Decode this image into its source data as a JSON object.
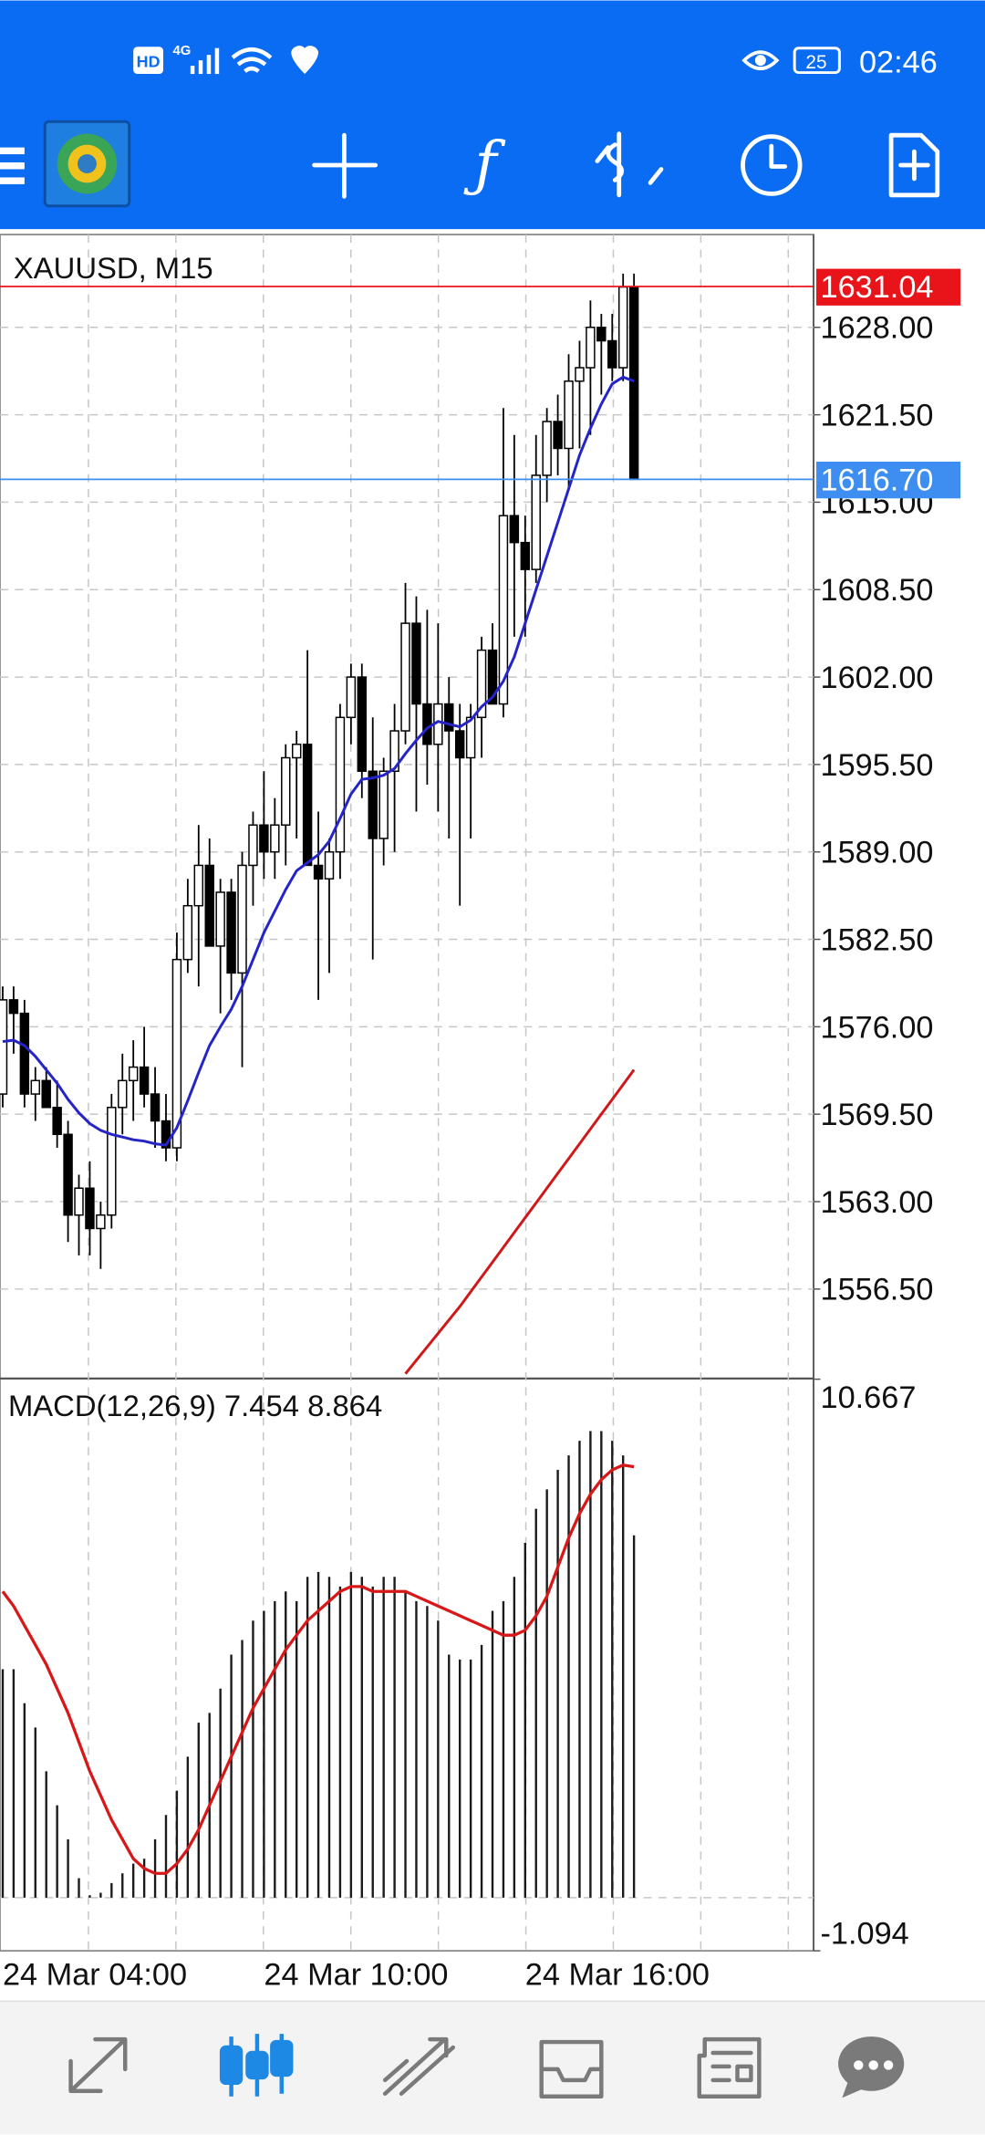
{
  "status_bar": {
    "indicators": [
      "HD",
      "4G"
    ],
    "battery": "25",
    "time": "02:46"
  },
  "chart_data": [
    {
      "type": "candlestick",
      "title": "XAUUSD, M15",
      "categories": [
        "24 Mar 04:00",
        null,
        null,
        null,
        null,
        null,
        null,
        null,
        null,
        null,
        null,
        null,
        null,
        null,
        null,
        null,
        null,
        null,
        null,
        null,
        null,
        null,
        null,
        null,
        "24 Mar 10:00",
        null,
        null,
        null,
        null,
        null,
        null,
        null,
        null,
        null,
        null,
        null,
        null,
        null,
        null,
        null,
        null,
        null,
        null,
        null,
        null,
        null,
        null,
        null,
        "24 Mar 16:00",
        null,
        null,
        null,
        null,
        null,
        null,
        null,
        null,
        null,
        null
      ],
      "open": [
        1571,
        1578,
        1577,
        1571,
        1572,
        1570,
        1568,
        1562,
        1564,
        1561,
        1562,
        1570,
        1572,
        1573,
        1571,
        1569,
        1567,
        1581,
        1585,
        1588,
        1582,
        1586,
        1580,
        1588,
        1591,
        1589,
        1591,
        1596,
        1597,
        1588,
        1587,
        1589,
        1599,
        1602,
        1595,
        1590,
        1595,
        1598,
        1606,
        1600,
        1597,
        1600,
        1598,
        1596,
        1599,
        1604,
        1600,
        1614,
        1612,
        1610,
        1617,
        1621,
        1619,
        1624,
        1625,
        1628,
        1627,
        1625,
        1631
      ],
      "high": [
        1579,
        1579,
        1578,
        1573,
        1573,
        1572,
        1569,
        1565,
        1566,
        1563,
        1571,
        1574,
        1575,
        1576,
        1573,
        1571,
        1583,
        1587,
        1591,
        1590,
        1587,
        1587,
        1589,
        1592,
        1595,
        1593,
        1597,
        1598,
        1604,
        1592,
        1590,
        1600,
        1603,
        1603,
        1599,
        1596,
        1600,
        1609,
        1608,
        1607,
        1606,
        1602,
        1600,
        1600,
        1605,
        1606,
        1622,
        1620,
        1614,
        1620,
        1622,
        1623,
        1626,
        1627,
        1630,
        1629,
        1629,
        1632,
        1632
      ],
      "low": [
        1570,
        1574,
        1570,
        1569,
        1570,
        1567,
        1560,
        1559,
        1559,
        1558,
        1561,
        1568,
        1569,
        1570,
        1567,
        1566,
        1566,
        1580,
        1579,
        1582,
        1577,
        1578,
        1573,
        1585,
        1587,
        1587,
        1588,
        1590,
        1588,
        1578,
        1580,
        1587,
        1597,
        1593,
        1581,
        1588,
        1589,
        1597,
        1592,
        1594,
        1592,
        1590,
        1585,
        1590,
        1596,
        1600,
        1599,
        1605,
        1605,
        1609,
        1615,
        1617,
        1616,
        1619,
        1620,
        1623,
        1624,
        1624,
        1616.7
      ],
      "close": [
        1578,
        1577,
        1571,
        1572,
        1570,
        1568,
        1562,
        1564,
        1561,
        1562,
        1570,
        1572,
        1573,
        1571,
        1569,
        1567,
        1581,
        1585,
        1588,
        1582,
        1586,
        1580,
        1588,
        1591,
        1589,
        1591,
        1596,
        1597,
        1588,
        1587,
        1589,
        1599,
        1602,
        1595,
        1590,
        1595,
        1598,
        1606,
        1600,
        1597,
        1600,
        1598,
        1596,
        1599,
        1604,
        1600,
        1614,
        1612,
        1610,
        1617,
        1621,
        1619,
        1624,
        1625,
        1628,
        1627,
        1625,
        1631,
        1616.7
      ],
      "lines": [
        {
          "color": "#2424c8",
          "values": [
            1574.9,
            1575.0,
            1574.6,
            1573.8,
            1572.8,
            1571.8,
            1570.6,
            1569.6,
            1568.8,
            1568.3,
            1568.0,
            1567.8,
            1567.6,
            1567.5,
            1567.3,
            1567.2,
            1568.5,
            1570.5,
            1572.6,
            1574.6,
            1576.0,
            1577.3,
            1579.0,
            1581.0,
            1583.0,
            1584.6,
            1586.2,
            1587.6,
            1588.2,
            1588.8,
            1589.8,
            1591.5,
            1593.3,
            1594.4,
            1594.5,
            1594.7,
            1595.2,
            1596.3,
            1597.3,
            1598.2,
            1598.7,
            1598.5,
            1598.3,
            1598.8,
            1599.8,
            1600.5,
            1601.7,
            1603.5,
            1606.0,
            1608.5,
            1611.0,
            1613.5,
            1616.0,
            1618.5,
            1620.5,
            1622.3,
            1623.8,
            1624.3,
            1624.0
          ]
        },
        {
          "color": "#d01818",
          "values": [
            null,
            null,
            null,
            null,
            null,
            null,
            null,
            null,
            null,
            null,
            null,
            null,
            null,
            null,
            null,
            null,
            null,
            null,
            null,
            null,
            null,
            null,
            null,
            null,
            null,
            null,
            null,
            null,
            null,
            null,
            null,
            null,
            null,
            null,
            null,
            null,
            null,
            1550.2,
            1551.2,
            1552.2,
            1553.2,
            1554.2,
            1555.2,
            1556.3,
            1557.4,
            1558.5,
            1559.6,
            1560.7,
            1561.8,
            1562.9,
            1564.0,
            1565.1,
            1566.2,
            1567.3,
            1568.4,
            1569.5,
            1570.6,
            1571.7,
            1572.8
          ]
        }
      ],
      "price_lines": [
        {
          "value": 1631.04,
          "label": "1631.04",
          "color": "#e8141a"
        },
        {
          "value": 1616.7,
          "label": "1616.70",
          "color": "#3d8ef0"
        }
      ],
      "ylim": [
        1549.9,
        1634.9
      ],
      "yticks": [
        {
          "value": 1556.5,
          "label": "1556.50"
        },
        {
          "value": 1563,
          "label": "1563.00"
        },
        {
          "value": 1569.5,
          "label": "1569.50"
        },
        {
          "value": 1576,
          "label": "1576.00"
        },
        {
          "value": 1582.5,
          "label": "1582.50"
        },
        {
          "value": 1589,
          "label": "1589.00"
        },
        {
          "value": 1595.5,
          "label": "1595.50"
        },
        {
          "value": 1602,
          "label": "1602.00"
        },
        {
          "value": 1608.5,
          "label": "1608.50"
        },
        {
          "value": 1615,
          "label": "1615.00"
        },
        {
          "value": 1621.5,
          "label": "1621.50"
        },
        {
          "value": 1628,
          "label": "1628.00"
        }
      ],
      "grid": true
    },
    {
      "type": "combo",
      "title": "MACD(12,26,9)",
      "series": [
        {
          "type": "bar",
          "color": "#1a1a1a",
          "values": [
            4.7,
            4.7,
            4.0,
            3.5,
            2.6,
            1.9,
            1.2,
            0.4,
            0.05,
            0.1,
            0.3,
            0.5,
            0.7,
            0.8,
            1.2,
            1.7,
            2.2,
            2.9,
            3.6,
            3.8,
            4.3,
            5.0,
            5.3,
            5.7,
            5.9,
            6.1,
            6.3,
            6.1,
            6.6,
            6.7,
            6.6,
            6.4,
            6.7,
            6.6,
            6.4,
            6.6,
            6.6,
            6.3,
            6.1,
            6.0,
            5.7,
            5.0,
            4.9,
            4.9,
            5.2,
            5.9,
            6.1,
            6.6,
            7.3,
            8.0,
            8.4,
            8.8,
            9.1,
            9.4,
            9.6,
            9.6,
            9.4,
            9.1,
            7.454
          ]
        },
        {
          "type": "line",
          "color": "#d81818",
          "values": [
            6.3,
            6.0,
            5.6,
            5.2,
            4.8,
            4.3,
            3.8,
            3.2,
            2.6,
            2.1,
            1.6,
            1.2,
            0.8,
            0.6,
            0.5,
            0.5,
            0.7,
            1.0,
            1.4,
            1.9,
            2.4,
            2.9,
            3.4,
            3.9,
            4.3,
            4.7,
            5.1,
            5.4,
            5.7,
            5.9,
            6.1,
            6.3,
            6.4,
            6.4,
            6.3,
            6.3,
            6.3,
            6.3,
            6.2,
            6.1,
            6.0,
            5.9,
            5.8,
            5.7,
            5.6,
            5.5,
            5.4,
            5.4,
            5.5,
            5.8,
            6.2,
            6.8,
            7.4,
            7.9,
            8.3,
            8.6,
            8.8,
            8.9,
            8.864
          ]
        }
      ],
      "ylim": [
        -1.094,
        10.667
      ],
      "yticks": [
        10.667,
        -1.094
      ]
    }
  ]
}
